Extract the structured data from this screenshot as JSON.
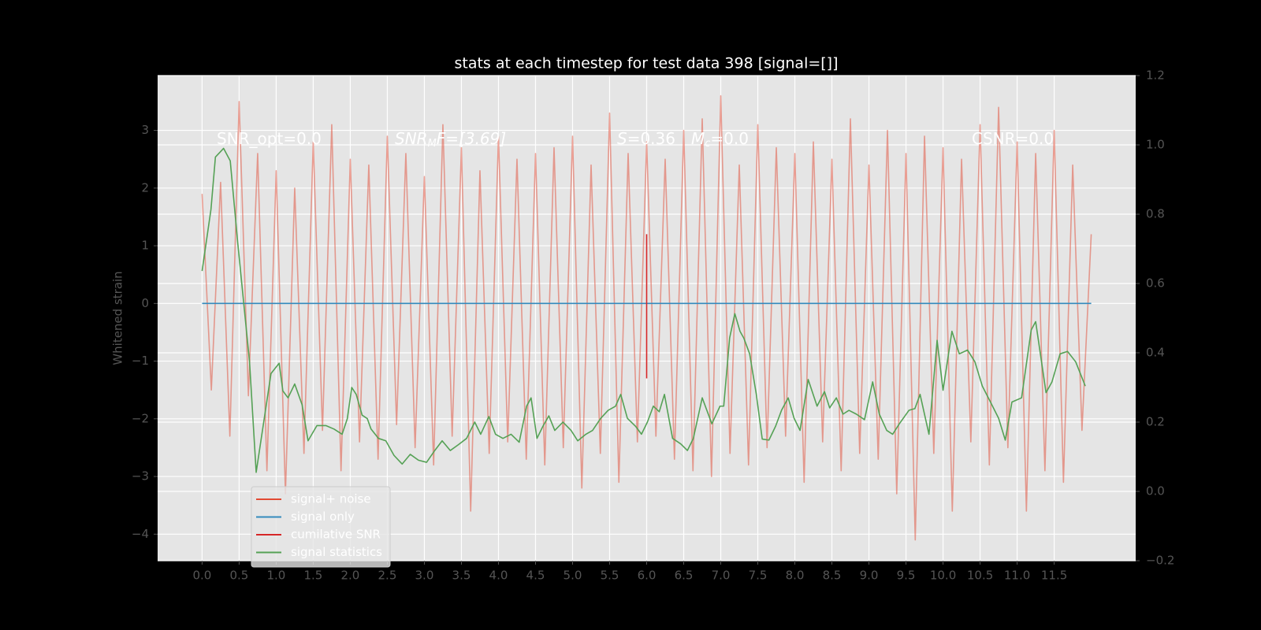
{
  "chart_data": {
    "type": "line",
    "title": "stats at each timestep for test data 398 [signal=[]]",
    "y_label": "Whitened strain",
    "background": "#000000",
    "plot_background": "#E5E5E5",
    "grid": true,
    "legend_loc": "lower left",
    "xlim": [
      -0.6,
      12.6
    ],
    "ylim": [
      -4.46,
      3.95
    ],
    "y2lim": [
      -0.2,
      1.2
    ],
    "xticks": [
      {
        "value": 0,
        "label": "0.0"
      },
      0.5,
      {
        "value": 1,
        "label": "1.0"
      },
      1.5,
      {
        "value": 2,
        "label": "2.0"
      },
      2.5,
      {
        "value": 3,
        "label": "3.0"
      },
      3.5,
      {
        "value": 4,
        "label": "4.0"
      },
      4.5,
      {
        "value": 5,
        "label": "5.0"
      },
      5.5,
      {
        "value": 6,
        "label": "6.0"
      },
      6.5,
      {
        "value": 7,
        "label": "7.0"
      },
      7.5,
      {
        "value": 8,
        "label": "8.0"
      },
      8.5,
      {
        "value": 9,
        "label": "9.0"
      },
      9.5,
      {
        "value": 10,
        "label": "10.0"
      },
      10.5,
      {
        "value": 11,
        "label": "11.0"
      },
      11.5
    ],
    "yticks": [
      {
        "value": -4,
        "label": "−4"
      },
      {
        "value": -3,
        "label": "−3"
      },
      {
        "value": -2,
        "label": "−2"
      },
      {
        "value": -1,
        "label": "−1"
      },
      0,
      1,
      2,
      3
    ],
    "y2ticks": [
      {
        "value": -0.2,
        "label": "−0.2"
      },
      {
        "value": 0,
        "label": "0.0"
      },
      0.2,
      0.4,
      0.6,
      0.8,
      {
        "value": 1,
        "label": "1.0"
      },
      1.2
    ],
    "annotations": [
      [
        "SNR_opt=0.0"
      ],
      [
        "SNR",
        "M",
        "F=[3.69]"
      ],
      [
        "S",
        "=0.36"
      ],
      [
        "M",
        "c",
        "=0.0"
      ],
      [
        "CSNR=0.0"
      ]
    ],
    "series": [
      {
        "name": "signal+ noise",
        "color": "#E24A33",
        "opacity": 0.5,
        "x": [
          0,
          0.125,
          0.25,
          0.375,
          0.5,
          0.625,
          0.75,
          0.875,
          1,
          1.125,
          1.25,
          1.375,
          1.5,
          1.625,
          1.75,
          1.875,
          2,
          2.125,
          2.25,
          2.375,
          2.5,
          2.625,
          2.75,
          2.875,
          3,
          3.125,
          3.25,
          3.375,
          3.5,
          3.625,
          3.75,
          3.875,
          4,
          4.125,
          4.25,
          4.375,
          4.5,
          4.625,
          4.75,
          4.875,
          5,
          5.125,
          5.25,
          5.375,
          5.5,
          5.625,
          5.75,
          5.875,
          6,
          6.125,
          6.25,
          6.375,
          6.5,
          6.625,
          6.75,
          6.875,
          7,
          7.125,
          7.25,
          7.375,
          7.5,
          7.625,
          7.75,
          7.875,
          8,
          8.125,
          8.25,
          8.375,
          8.5,
          8.625,
          8.75,
          8.875,
          9,
          9.125,
          9.25,
          9.375,
          9.5,
          9.625,
          9.75,
          9.875,
          10,
          10.125,
          10.25,
          10.375,
          10.5,
          10.625,
          10.75,
          10.875,
          11,
          11.125,
          11.25,
          11.375,
          11.5,
          11.625,
          11.75,
          11.875,
          12
        ],
        "values": [
          1.9,
          -1.5,
          2.1,
          -2.3,
          3.5,
          -1.6,
          2.6,
          -2.9,
          2.3,
          -3.3,
          2.0,
          -2.6,
          2.8,
          -2.2,
          3.1,
          -2.9,
          2.5,
          -2.4,
          2.4,
          -2.7,
          2.9,
          -2.1,
          2.6,
          -2.5,
          2.2,
          -2.8,
          3.1,
          -2.3,
          2.7,
          -3.6,
          2.3,
          -2.6,
          2.9,
          -2.4,
          2.5,
          -2.7,
          2.6,
          -2.8,
          2.7,
          -2.5,
          2.9,
          -3.2,
          2.4,
          -2.6,
          3.3,
          -3.1,
          2.6,
          -2.4,
          2.8,
          -2.3,
          2.5,
          -2.7,
          3.0,
          -2.9,
          3.2,
          -3.0,
          3.6,
          -2.6,
          2.4,
          -2.8,
          3.1,
          -2.5,
          2.7,
          -2.3,
          2.6,
          -3.1,
          2.8,
          -2.4,
          2.5,
          -2.9,
          3.2,
          -2.6,
          2.4,
          -2.7,
          3.0,
          -3.3,
          2.6,
          -4.1,
          2.9,
          -2.6,
          2.7,
          -3.6,
          2.5,
          -2.4,
          3.1,
          -2.8,
          3.4,
          -2.5,
          2.8,
          -3.6,
          2.6,
          -2.9,
          3.0,
          -3.1,
          2.4,
          -2.2,
          1.2
        ]
      },
      {
        "name": "signal only",
        "color": "#348ABD",
        "x": [
          0,
          12
        ],
        "values": [
          0,
          0
        ]
      },
      {
        "name": "cumilative SNR",
        "color": "#D62728",
        "x": [
          6.0,
          6.0
        ],
        "values": [
          1.2,
          -1.3
        ]
      },
      {
        "name": "signal statistics",
        "color": "#55A155",
        "axis": "y2",
        "x": [
          0,
          0.12,
          0.18,
          0.29,
          0.38,
          0.48,
          0.64,
          0.73,
          0.93,
          1.04,
          1.09,
          1.16,
          1.25,
          1.35,
          1.43,
          1.55,
          1.67,
          1.78,
          1.89,
          1.96,
          2.02,
          2.08,
          2.16,
          2.23,
          2.28,
          2.38,
          2.48,
          2.59,
          2.7,
          2.81,
          2.92,
          3.03,
          3.14,
          3.24,
          3.35,
          3.46,
          3.57,
          3.68,
          3.76,
          3.87,
          3.96,
          4.06,
          4.17,
          4.28,
          4.38,
          4.44,
          4.52,
          4.6,
          4.68,
          4.76,
          4.87,
          4.98,
          5.07,
          5.18,
          5.27,
          5.38,
          5.48,
          5.58,
          5.65,
          5.74,
          5.85,
          5.93,
          6.01,
          6.09,
          6.17,
          6.24,
          6.35,
          6.46,
          6.55,
          6.63,
          6.75,
          6.88,
          6.99,
          7.04,
          7.12,
          7.19,
          7.26,
          7.31,
          7.39,
          7.48,
          7.56,
          7.65,
          7.74,
          7.82,
          7.91,
          7.99,
          8.07,
          8.18,
          8.3,
          8.4,
          8.47,
          8.56,
          8.65,
          8.73,
          8.83,
          8.94,
          9.05,
          9.14,
          9.24,
          9.32,
          9.41,
          9.54,
          9.62,
          9.69,
          9.81,
          9.92,
          10.0,
          10.12,
          10.22,
          10.33,
          10.43,
          10.53,
          10.64,
          10.75,
          10.84,
          10.93,
          11.06,
          11.19,
          11.25,
          11.39,
          11.47,
          11.58,
          11.68,
          11.79,
          11.92
        ],
        "values": [
          0.636,
          0.814,
          0.965,
          0.99,
          0.954,
          0.72,
          0.375,
          0.055,
          0.34,
          0.37,
          0.29,
          0.27,
          0.31,
          0.25,
          0.146,
          0.19,
          0.19,
          0.18,
          0.165,
          0.21,
          0.3,
          0.28,
          0.22,
          0.21,
          0.18,
          0.153,
          0.146,
          0.104,
          0.079,
          0.107,
          0.09,
          0.084,
          0.118,
          0.146,
          0.118,
          0.135,
          0.153,
          0.2,
          0.165,
          0.216,
          0.165,
          0.153,
          0.165,
          0.142,
          0.246,
          0.27,
          0.153,
          0.188,
          0.218,
          0.176,
          0.2,
          0.176,
          0.146,
          0.165,
          0.176,
          0.211,
          0.234,
          0.246,
          0.28,
          0.211,
          0.188,
          0.165,
          0.2,
          0.246,
          0.23,
          0.28,
          0.153,
          0.137,
          0.118,
          0.153,
          0.27,
          0.195,
          0.246,
          0.246,
          0.443,
          0.513,
          0.462,
          0.443,
          0.397,
          0.28,
          0.151,
          0.148,
          0.188,
          0.234,
          0.27,
          0.211,
          0.176,
          0.323,
          0.246,
          0.288,
          0.241,
          0.27,
          0.223,
          0.234,
          0.223,
          0.207,
          0.316,
          0.223,
          0.176,
          0.165,
          0.195,
          0.234,
          0.239,
          0.28,
          0.165,
          0.436,
          0.292,
          0.462,
          0.397,
          0.408,
          0.374,
          0.304,
          0.258,
          0.211,
          0.148,
          0.258,
          0.27,
          0.466,
          0.49,
          0.285,
          0.316,
          0.397,
          0.404,
          0.374,
          0.304
        ]
      }
    ]
  }
}
